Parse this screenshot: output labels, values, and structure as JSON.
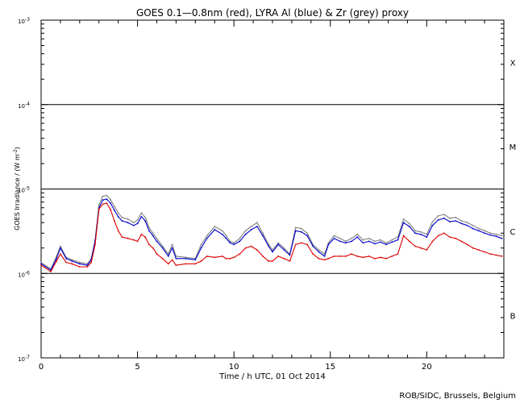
{
  "chart_data": {
    "type": "line",
    "title": "GOES 0.1—0.8nm (red), LYRA Al (blue) & Zr (grey) proxy",
    "xlabel": "Time / h UTC, 01 Oct 2014",
    "ylabel": "GOES Irradiance / (W m",
    "ylabel_exp": "-2",
    "xlim": [
      0,
      24
    ],
    "ylim": [
      1e-07,
      0.001
    ],
    "yscale": "log",
    "x_ticks": [
      {
        "value": 0,
        "label": "0"
      },
      {
        "value": 5,
        "label": "5"
      },
      {
        "value": 10,
        "label": "10"
      },
      {
        "value": 15,
        "label": "15"
      },
      {
        "value": 20,
        "label": "20"
      }
    ],
    "y_ticks": [
      {
        "value": 0.001,
        "base": "10",
        "exp": "-3"
      },
      {
        "value": 0.0001,
        "base": "10",
        "exp": "-4"
      },
      {
        "value": 1e-05,
        "base": "10",
        "exp": "-5"
      },
      {
        "value": 1e-06,
        "base": "10",
        "exp": "-6"
      },
      {
        "value": 1e-07,
        "base": "10",
        "exp": "-7"
      }
    ],
    "flare_lines": [
      0.0001,
      1e-05,
      1e-06
    ],
    "flare_classes": [
      {
        "label": "X",
        "value": 0.000316
      },
      {
        "label": "M",
        "value": 3.16e-05
      },
      {
        "label": "C",
        "value": 3.16e-06
      },
      {
        "label": "B",
        "value": 3.16e-07
      }
    ],
    "footer": "ROB/SIDC, Brussels, Belgium",
    "series": [
      {
        "name": "LYRA Zr (grey) proxy",
        "color": "#808080",
        "x": [
          0.0,
          0.5,
          0.8,
          1.0,
          1.3,
          1.6,
          2.0,
          2.4,
          2.6,
          2.8,
          3.0,
          3.2,
          3.4,
          3.6,
          3.8,
          4.0,
          4.2,
          4.5,
          4.8,
          5.0,
          5.2,
          5.4,
          5.6,
          5.8,
          6.0,
          6.3,
          6.6,
          6.8,
          7.0,
          7.5,
          8.0,
          8.3,
          8.6,
          9.0,
          9.4,
          9.6,
          9.8,
          10.0,
          10.3,
          10.6,
          10.9,
          11.2,
          11.5,
          11.8,
          12.0,
          12.3,
          12.6,
          12.9,
          13.2,
          13.5,
          13.8,
          14.1,
          14.4,
          14.7,
          14.9,
          15.2,
          15.5,
          15.8,
          16.1,
          16.4,
          16.7,
          17.0,
          17.3,
          17.6,
          17.9,
          18.2,
          18.5,
          18.8,
          19.1,
          19.4,
          19.7,
          20.0,
          20.3,
          20.6,
          20.9,
          21.2,
          21.5,
          21.8,
          22.1,
          22.4,
          22.7,
          23.0,
          23.3,
          23.6,
          23.9
        ],
        "values": [
          1.35e-06,
          1.12e-06,
          1.6e-06,
          2.1e-06,
          1.55e-06,
          1.45e-06,
          1.35e-06,
          1.3e-06,
          1.5e-06,
          2.5e-06,
          6.5e-06,
          8.2e-06,
          8.4e-06,
          7.5e-06,
          6.2e-06,
          5.2e-06,
          4.6e-06,
          4.4e-06,
          4e-06,
          4.3e-06,
          5.2e-06,
          4.6e-06,
          3.5e-06,
          3e-06,
          2.6e-06,
          2.1e-06,
          1.7e-06,
          2.2e-06,
          1.6e-06,
          1.55e-06,
          1.5e-06,
          2.2e-06,
          2.8e-06,
          3.6e-06,
          3.2e-06,
          2.8e-06,
          2.4e-06,
          2.3e-06,
          2.6e-06,
          3.2e-06,
          3.6e-06,
          4e-06,
          3e-06,
          2.2e-06,
          1.9e-06,
          2.3e-06,
          2e-06,
          1.7e-06,
          3.5e-06,
          3.4e-06,
          3e-06,
          2.2e-06,
          1.9e-06,
          1.7e-06,
          2.3e-06,
          2.8e-06,
          2.6e-06,
          2.4e-06,
          2.6e-06,
          2.9e-06,
          2.5e-06,
          2.6e-06,
          2.4e-06,
          2.5e-06,
          2.3e-06,
          2.5e-06,
          2.7e-06,
          4.4e-06,
          3.9e-06,
          3.2e-06,
          3.1e-06,
          2.9e-06,
          4.1e-06,
          4.8e-06,
          5e-06,
          4.5e-06,
          4.6e-06,
          4.2e-06,
          4e-06,
          3.7e-06,
          3.4e-06,
          3.2e-06,
          3e-06,
          2.9e-06,
          2.8e-06
        ]
      },
      {
        "name": "LYRA Al (blue)",
        "color": "#0000cc",
        "x": [
          0.0,
          0.5,
          0.8,
          1.0,
          1.3,
          1.6,
          2.0,
          2.4,
          2.6,
          2.8,
          3.0,
          3.2,
          3.4,
          3.6,
          3.8,
          4.0,
          4.2,
          4.5,
          4.8,
          5.0,
          5.2,
          5.4,
          5.6,
          5.8,
          6.0,
          6.3,
          6.6,
          6.8,
          7.0,
          7.5,
          8.0,
          8.3,
          8.6,
          9.0,
          9.4,
          9.6,
          9.8,
          10.0,
          10.3,
          10.6,
          10.9,
          11.2,
          11.5,
          11.8,
          12.0,
          12.3,
          12.6,
          12.9,
          13.2,
          13.5,
          13.8,
          14.1,
          14.4,
          14.7,
          14.9,
          15.2,
          15.5,
          15.8,
          16.1,
          16.4,
          16.7,
          17.0,
          17.3,
          17.6,
          17.9,
          18.2,
          18.5,
          18.8,
          19.1,
          19.4,
          19.7,
          20.0,
          20.3,
          20.6,
          20.9,
          21.2,
          21.5,
          21.8,
          22.1,
          22.4,
          22.7,
          23.0,
          23.3,
          23.6,
          23.9
        ],
        "values": [
          1.3e-06,
          1.1e-06,
          1.5e-06,
          2e-06,
          1.5e-06,
          1.4e-06,
          1.3e-06,
          1.25e-06,
          1.45e-06,
          2.4e-06,
          6e-06,
          7.4e-06,
          7.6e-06,
          6.8e-06,
          5.6e-06,
          4.7e-06,
          4.2e-06,
          4e-06,
          3.7e-06,
          3.9e-06,
          4.7e-06,
          4.2e-06,
          3.2e-06,
          2.8e-06,
          2.4e-06,
          2e-06,
          1.6e-06,
          2e-06,
          1.5e-06,
          1.5e-06,
          1.45e-06,
          2e-06,
          2.6e-06,
          3.3e-06,
          2.9e-06,
          2.6e-06,
          2.3e-06,
          2.2e-06,
          2.4e-06,
          2.9e-06,
          3.3e-06,
          3.6e-06,
          2.8e-06,
          2.1e-06,
          1.8e-06,
          2.2e-06,
          1.9e-06,
          1.65e-06,
          3.2e-06,
          3.1e-06,
          2.8e-06,
          2.1e-06,
          1.8e-06,
          1.6e-06,
          2.2e-06,
          2.6e-06,
          2.4e-06,
          2.3e-06,
          2.4e-06,
          2.7e-06,
          2.3e-06,
          2.4e-06,
          2.25e-06,
          2.35e-06,
          2.2e-06,
          2.35e-06,
          2.5e-06,
          4e-06,
          3.6e-06,
          3e-06,
          2.9e-06,
          2.7e-06,
          3.7e-06,
          4.3e-06,
          4.5e-06,
          4.1e-06,
          4.2e-06,
          3.9e-06,
          3.7e-06,
          3.4e-06,
          3.2e-06,
          3e-06,
          2.85e-06,
          2.75e-06,
          2.6e-06
        ]
      },
      {
        "name": "GOES 0.1—0.8nm (red)",
        "color": "#dd0000",
        "x": [
          0.0,
          0.5,
          0.8,
          1.0,
          1.3,
          1.6,
          2.0,
          2.4,
          2.6,
          2.8,
          3.0,
          3.2,
          3.4,
          3.6,
          3.8,
          4.0,
          4.2,
          4.5,
          4.8,
          5.0,
          5.2,
          5.4,
          5.6,
          5.8,
          6.0,
          6.3,
          6.6,
          6.8,
          7.0,
          7.5,
          8.0,
          8.3,
          8.6,
          9.0,
          9.4,
          9.6,
          9.8,
          10.0,
          10.3,
          10.6,
          10.9,
          11.2,
          11.5,
          11.8,
          12.0,
          12.3,
          12.6,
          12.9,
          13.2,
          13.5,
          13.8,
          14.1,
          14.4,
          14.7,
          14.9,
          15.2,
          15.5,
          15.8,
          16.1,
          16.4,
          16.7,
          17.0,
          17.3,
          17.6,
          17.9,
          18.2,
          18.5,
          18.8,
          19.1,
          19.4,
          19.7,
          20.0,
          20.3,
          20.6,
          20.9,
          21.2,
          21.5,
          21.8,
          22.1,
          22.4,
          22.7,
          23.0,
          23.3,
          23.6,
          23.9
        ],
        "values": [
          1.25e-06,
          1.05e-06,
          1.4e-06,
          1.7e-06,
          1.35e-06,
          1.3e-06,
          1.2e-06,
          1.2e-06,
          1.35e-06,
          2.2e-06,
          5.8e-06,
          6.6e-06,
          6.8e-06,
          5.7e-06,
          4.2e-06,
          3.2e-06,
          2.7e-06,
          2.6e-06,
          2.5e-06,
          2.4e-06,
          2.9e-06,
          2.7e-06,
          2.2e-06,
          2e-06,
          1.7e-06,
          1.5e-06,
          1.3e-06,
          1.45e-06,
          1.25e-06,
          1.3e-06,
          1.3e-06,
          1.4e-06,
          1.6e-06,
          1.55e-06,
          1.6e-06,
          1.5e-06,
          1.5e-06,
          1.55e-06,
          1.7e-06,
          2e-06,
          2.1e-06,
          1.9e-06,
          1.6e-06,
          1.4e-06,
          1.4e-06,
          1.6e-06,
          1.5e-06,
          1.4e-06,
          2.2e-06,
          2.3e-06,
          2.2e-06,
          1.7e-06,
          1.5e-06,
          1.45e-06,
          1.5e-06,
          1.6e-06,
          1.6e-06,
          1.6e-06,
          1.7e-06,
          1.6e-06,
          1.55e-06,
          1.6e-06,
          1.5e-06,
          1.55e-06,
          1.5e-06,
          1.6e-06,
          1.7e-06,
          2.8e-06,
          2.4e-06,
          2.1e-06,
          2e-06,
          1.9e-06,
          2.4e-06,
          2.8e-06,
          3e-06,
          2.7e-06,
          2.6e-06,
          2.4e-06,
          2.2e-06,
          2e-06,
          1.9e-06,
          1.8e-06,
          1.7e-06,
          1.65e-06,
          1.6e-06
        ]
      }
    ]
  }
}
